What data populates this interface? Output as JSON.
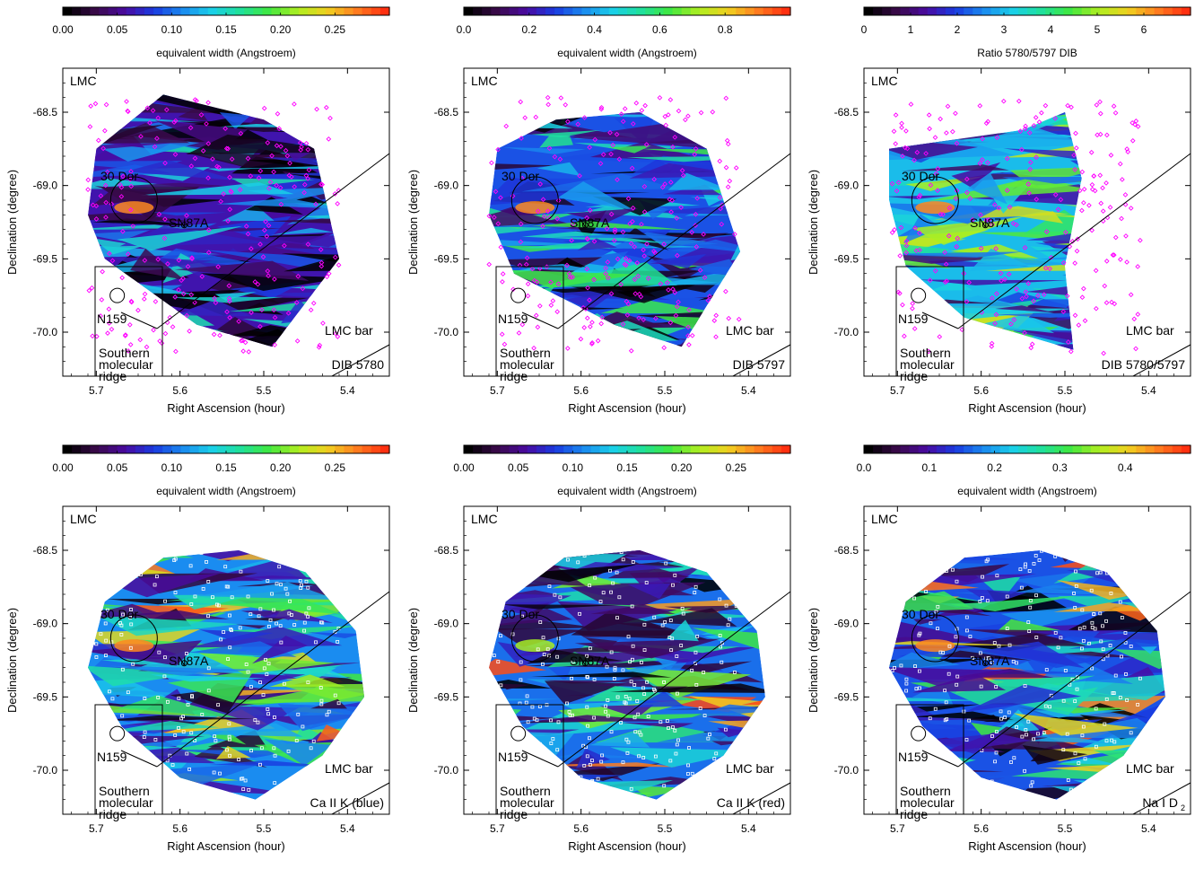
{
  "figure": {
    "xlabel": "Right Ascension (hour)",
    "ylabel": "Declination (degree)",
    "xticks": [
      "5.7",
      "5.6",
      "5.5",
      "5.4"
    ],
    "yticks": [
      "-68.5",
      "-69.0",
      "-69.5",
      "-70.0"
    ],
    "galaxy_label": "LMC",
    "region_labels": {
      "dor30": "30 Dor",
      "sn87a": "SN87A",
      "n159": "N159",
      "bar": "LMC bar",
      "ridge_1": "Southern",
      "ridge_2": "molecular",
      "ridge_3": "ridge"
    },
    "colormap": [
      "#000000",
      "#3a0a4a",
      "#4a0aa0",
      "#1a3ae0",
      "#1a8af0",
      "#1ad0e8",
      "#20e09a",
      "#40e840",
      "#b0ee20",
      "#f0d020",
      "#ff8020",
      "#ff3010"
    ]
  },
  "chart_data": [
    {
      "type": "heatmap",
      "panel_label": "DIB 5780",
      "colorbar_label": "equivalent width (Angstroem)",
      "colorbar_ticks": [
        "0.00",
        "0.05",
        "0.10",
        "0.15",
        "0.20",
        "0.25"
      ],
      "colorbar_range": [
        0,
        0.3
      ],
      "xlim": [
        5.74,
        5.35
      ],
      "ylim": [
        -70.3,
        -68.2
      ],
      "typical_value": 0.06,
      "marker_color": "#ff00ff"
    },
    {
      "type": "heatmap",
      "panel_label": "DIB 5797",
      "colorbar_label": "equivalent width (Angstroem)",
      "colorbar_ticks": [
        "0.0",
        "0.2",
        "0.4",
        "0.6",
        "0.8"
      ],
      "colorbar_range": [
        0,
        1.0
      ],
      "xlim": [
        5.74,
        5.35
      ],
      "ylim": [
        -70.3,
        -68.2
      ],
      "typical_value": 0.3,
      "marker_color": "#ff00ff"
    },
    {
      "type": "heatmap",
      "panel_label": "DIB 5780/5797",
      "colorbar_label": "Ratio 5780/5797 DIB",
      "colorbar_ticks": [
        "0",
        "1",
        "2",
        "3",
        "4",
        "5",
        "6"
      ],
      "colorbar_range": [
        0,
        7
      ],
      "xlim": [
        5.74,
        5.35
      ],
      "ylim": [
        -70.3,
        -68.2
      ],
      "typical_value": 3.0,
      "marker_color": "#ff00ff"
    },
    {
      "type": "heatmap",
      "panel_label": "Ca II K (blue)",
      "colorbar_label": "equivalent width (Angstroem)",
      "colorbar_ticks": [
        "0.00",
        "0.05",
        "0.10",
        "0.15",
        "0.20",
        "0.25"
      ],
      "colorbar_range": [
        0,
        0.3
      ],
      "xlim": [
        5.74,
        5.35
      ],
      "ylim": [
        -70.3,
        -68.2
      ],
      "typical_value": 0.11,
      "marker_color": "#ffffff"
    },
    {
      "type": "heatmap",
      "panel_label": "Ca II K (red)",
      "colorbar_label": "equivalent width (Angstroem)",
      "colorbar_ticks": [
        "0.00",
        "0.05",
        "0.10",
        "0.15",
        "0.20",
        "0.25"
      ],
      "colorbar_range": [
        0,
        0.3
      ],
      "xlim": [
        5.74,
        5.35
      ],
      "ylim": [
        -70.3,
        -68.2
      ],
      "typical_value": 0.1,
      "marker_color": "#ffffff"
    },
    {
      "type": "heatmap",
      "panel_label": "Na I D",
      "panel_label_sub": "2",
      "colorbar_label": "equivalent width (Angstroem)",
      "colorbar_ticks": [
        "0.0",
        "0.1",
        "0.2",
        "0.3",
        "0.4"
      ],
      "colorbar_range": [
        0,
        0.5
      ],
      "xlim": [
        5.74,
        5.35
      ],
      "ylim": [
        -70.3,
        -68.2
      ],
      "typical_value": 0.15,
      "marker_color": "#ffffff"
    }
  ]
}
